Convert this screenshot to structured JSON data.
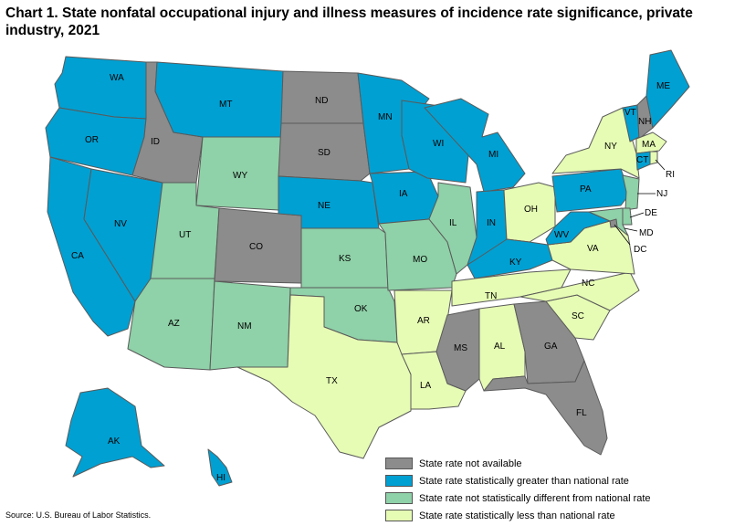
{
  "title": "Chart 1. State nonfatal occupational injury and illness measures of incidence rate significance, private industry, 2021",
  "source": "Source: U.S. Bureau of Labor Statistics.",
  "colors": {
    "not_available": "#8c8c8c",
    "greater": "#00a0d2",
    "not_different": "#8fd1a8",
    "less": "#e6fcb4"
  },
  "legend": [
    {
      "key": "not_available",
      "label": "State rate not available"
    },
    {
      "key": "greater",
      "label": "State rate statistically greater than national rate"
    },
    {
      "key": "not_different",
      "label": "State rate not statistically different from national rate"
    },
    {
      "key": "less",
      "label": "State rate statistically less than national rate"
    }
  ],
  "states": {
    "WA": "greater",
    "OR": "greater",
    "CA": "greater",
    "NV": "greater",
    "ID": "not_available",
    "MT": "greater",
    "WY": "not_different",
    "UT": "not_different",
    "AZ": "not_different",
    "NM": "not_different",
    "CO": "not_available",
    "ND": "not_available",
    "SD": "not_available",
    "NE": "greater",
    "KS": "not_different",
    "OK": "not_different",
    "TX": "less",
    "MN": "greater",
    "IA": "greater",
    "MO": "not_different",
    "AR": "less",
    "LA": "less",
    "WI": "greater",
    "IL": "not_different",
    "MI": "greater",
    "IN": "greater",
    "OH": "less",
    "KY": "greater",
    "TN": "less",
    "MS": "not_available",
    "AL": "less",
    "GA": "not_available",
    "FL": "not_available",
    "SC": "less",
    "NC": "less",
    "VA": "less",
    "WV": "greater",
    "PA": "greater",
    "NY": "less",
    "VT": "greater",
    "NH": "not_available",
    "ME": "greater",
    "MA": "less",
    "RI": "less",
    "CT": "greater",
    "NJ": "not_different",
    "DE": "not_different",
    "MD": "not_different",
    "DC": "not_available",
    "AK": "greater",
    "HI": "greater"
  }
}
